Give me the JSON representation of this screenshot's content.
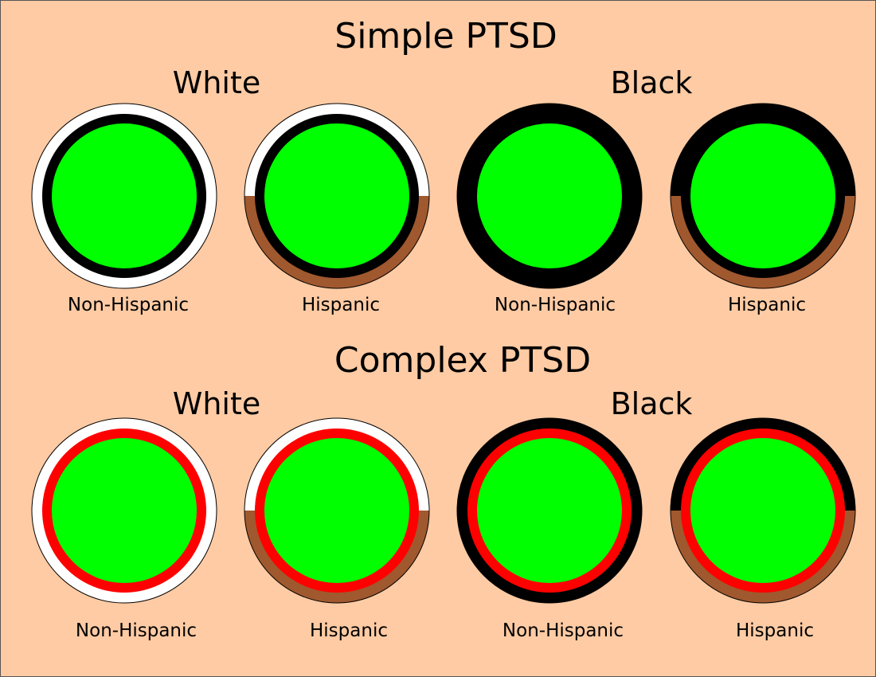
{
  "colors": {
    "background": "#ffcba4",
    "white": "#ffffff",
    "black": "#000000",
    "brown": "#a0582e",
    "green": "#00ff00",
    "red": "#ff0000",
    "outline": "#000000"
  },
  "panels": [
    {
      "title": "Simple PTSD",
      "inner_ring": "black",
      "groups": [
        {
          "label": "White",
          "items": [
            {
              "label": "Non-Hispanic",
              "outer_top": "white",
              "outer_bottom": "white"
            },
            {
              "label": "Hispanic",
              "outer_top": "white",
              "outer_bottom": "brown"
            }
          ]
        },
        {
          "label": "Black",
          "items": [
            {
              "label": "Non-Hispanic",
              "outer_top": "black",
              "outer_bottom": "black"
            },
            {
              "label": "Hispanic",
              "outer_top": "black",
              "outer_bottom": "brown"
            }
          ]
        }
      ]
    },
    {
      "title": "Complex PTSD",
      "inner_ring": "red",
      "groups": [
        {
          "label": "White",
          "items": [
            {
              "label": "Non-Hispanic",
              "outer_top": "white",
              "outer_bottom": "white"
            },
            {
              "label": "Hispanic",
              "outer_top": "white",
              "outer_bottom": "brown"
            }
          ]
        },
        {
          "label": "Black",
          "items": [
            {
              "label": "Non-Hispanic",
              "outer_top": "black",
              "outer_bottom": "black"
            },
            {
              "label": "Hispanic",
              "outer_top": "black",
              "outer_bottom": "brown"
            }
          ]
        }
      ]
    }
  ]
}
